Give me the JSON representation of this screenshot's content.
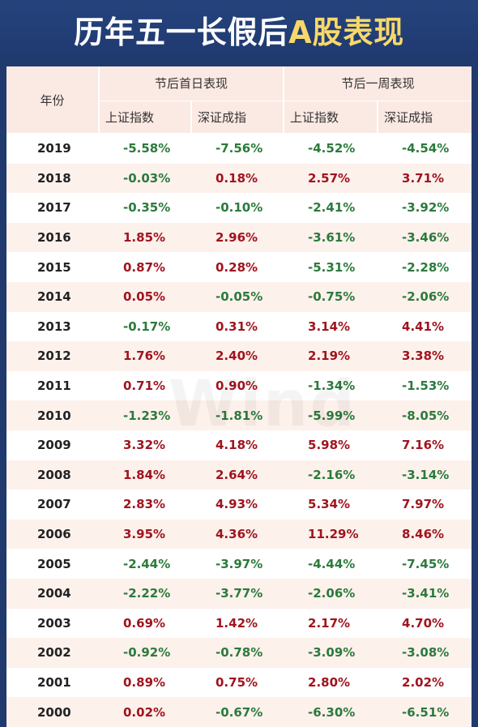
{
  "title_part1": "历年五一长假后",
  "title_part2": "A股表现",
  "watermark": "Wind",
  "headers": {
    "year": "年份",
    "group1": "节后首日表现",
    "group2": "节后一周表现",
    "sub": [
      "上证指数",
      "深证成指",
      "上证指数",
      "深证成指"
    ]
  },
  "colors": {
    "positive": "#a0141e",
    "negative": "#2c7a3c",
    "title_accent": "#f7d86a",
    "band": "#fdf1ec"
  },
  "rows": [
    {
      "year": "2019",
      "sh_day1": "-5.58%",
      "sz_day1": "-7.56%",
      "sh_week": "-4.52%",
      "sz_week": "-4.54%"
    },
    {
      "year": "2018",
      "sh_day1": "-0.03%",
      "sz_day1": "0.18%",
      "sh_week": "2.57%",
      "sz_week": "3.71%"
    },
    {
      "year": "2017",
      "sh_day1": "-0.35%",
      "sz_day1": "-0.10%",
      "sh_week": "-2.41%",
      "sz_week": "-3.92%"
    },
    {
      "year": "2016",
      "sh_day1": "1.85%",
      "sz_day1": "2.96%",
      "sh_week": "-3.61%",
      "sz_week": "-3.46%"
    },
    {
      "year": "2015",
      "sh_day1": "0.87%",
      "sz_day1": "0.28%",
      "sh_week": "-5.31%",
      "sz_week": "-2.28%"
    },
    {
      "year": "2014",
      "sh_day1": "0.05%",
      "sz_day1": "-0.05%",
      "sh_week": "-0.75%",
      "sz_week": "-2.06%"
    },
    {
      "year": "2013",
      "sh_day1": "-0.17%",
      "sz_day1": "0.31%",
      "sh_week": "3.14%",
      "sz_week": "4.41%"
    },
    {
      "year": "2012",
      "sh_day1": "1.76%",
      "sz_day1": "2.40%",
      "sh_week": "2.19%",
      "sz_week": "3.38%"
    },
    {
      "year": "2011",
      "sh_day1": "0.71%",
      "sz_day1": "0.90%",
      "sh_week": "-1.34%",
      "sz_week": "-1.53%"
    },
    {
      "year": "2010",
      "sh_day1": "-1.23%",
      "sz_day1": "-1.81%",
      "sh_week": "-5.99%",
      "sz_week": "-8.05%"
    },
    {
      "year": "2009",
      "sh_day1": "3.32%",
      "sz_day1": "4.18%",
      "sh_week": "5.98%",
      "sz_week": "7.16%"
    },
    {
      "year": "2008",
      "sh_day1": "1.84%",
      "sz_day1": "2.64%",
      "sh_week": "-2.16%",
      "sz_week": "-3.14%"
    },
    {
      "year": "2007",
      "sh_day1": "2.83%",
      "sz_day1": "4.93%",
      "sh_week": "5.34%",
      "sz_week": "7.97%"
    },
    {
      "year": "2006",
      "sh_day1": "3.95%",
      "sz_day1": "4.36%",
      "sh_week": "11.29%",
      "sz_week": "8.46%"
    },
    {
      "year": "2005",
      "sh_day1": "-2.44%",
      "sz_day1": "-3.97%",
      "sh_week": "-4.44%",
      "sz_week": "-7.45%"
    },
    {
      "year": "2004",
      "sh_day1": "-2.22%",
      "sz_day1": "-3.77%",
      "sh_week": "-2.06%",
      "sz_week": "-3.41%"
    },
    {
      "year": "2003",
      "sh_day1": "0.69%",
      "sz_day1": "1.42%",
      "sh_week": "2.17%",
      "sz_week": "4.70%"
    },
    {
      "year": "2002",
      "sh_day1": "-0.92%",
      "sz_day1": "-0.78%",
      "sh_week": "-3.09%",
      "sz_week": "-3.08%"
    },
    {
      "year": "2001",
      "sh_day1": "0.89%",
      "sz_day1": "0.75%",
      "sh_week": "2.80%",
      "sz_week": "2.02%"
    },
    {
      "year": "2000",
      "sh_day1": "0.02%",
      "sz_day1": "-0.67%",
      "sh_week": "-6.30%",
      "sz_week": "-6.51%"
    }
  ]
}
